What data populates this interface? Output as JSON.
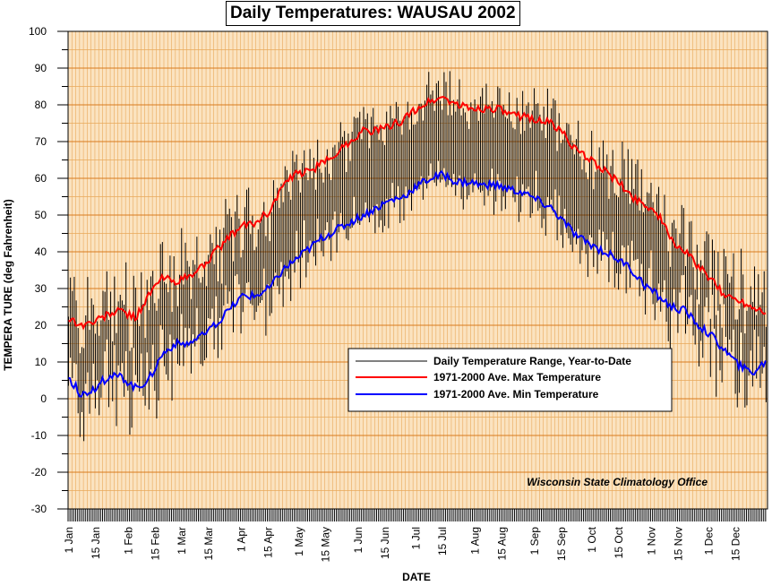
{
  "chart_data": {
    "type": "line",
    "title": "Daily Temperatures: WAUSAU 2002",
    "xlabel": "DATE",
    "ylabel": "TEMPERA TURE (deg Fahrenheit)",
    "ylim": [
      -30,
      100
    ],
    "y_ticks": [
      -30,
      -20,
      -10,
      0,
      10,
      20,
      30,
      40,
      50,
      60,
      70,
      80,
      90,
      100
    ],
    "x_tick_labels": [
      {
        "day": 1,
        "label": "1 Jan"
      },
      {
        "day": 15,
        "label": "15 Jan"
      },
      {
        "day": 32,
        "label": "1 Feb"
      },
      {
        "day": 46,
        "label": "15 Feb"
      },
      {
        "day": 60,
        "label": "1 Mar"
      },
      {
        "day": 74,
        "label": "15 Mar"
      },
      {
        "day": 91,
        "label": "1 Apr"
      },
      {
        "day": 105,
        "label": "15 Apr"
      },
      {
        "day": 121,
        "label": "1 May"
      },
      {
        "day": 135,
        "label": "15 May"
      },
      {
        "day": 152,
        "label": "1 Jun"
      },
      {
        "day": 166,
        "label": "15 Jun"
      },
      {
        "day": 182,
        "label": "1 Jul"
      },
      {
        "day": 196,
        "label": "15 Jul"
      },
      {
        "day": 213,
        "label": "1 Aug"
      },
      {
        "day": 227,
        "label": "15 Aug"
      },
      {
        "day": 244,
        "label": "1 Sep"
      },
      {
        "day": 258,
        "label": "15 Sep"
      },
      {
        "day": 274,
        "label": "1 Oct"
      },
      {
        "day": 288,
        "label": "15 Oct"
      },
      {
        "day": 305,
        "label": "1 Nov"
      },
      {
        "day": 319,
        "label": "15 Nov"
      },
      {
        "day": 335,
        "label": "1 Dec"
      },
      {
        "day": 349,
        "label": "15 Dec"
      }
    ],
    "grid": true,
    "legend_position": "lower-right",
    "legend": [
      {
        "name": "Daily Temperature Range, Year-to-Date",
        "color": "#000000"
      },
      {
        "name": "1971-2000 Ave. Max Temperature",
        "color": "#ff0000"
      },
      {
        "name": "1971-2000 Ave. Min Temperature",
        "color": "#0000ff"
      }
    ],
    "series": [
      {
        "name": "1971-2000 Ave. Max Temperature",
        "color": "#ff0000",
        "x": [
          1,
          8,
          15,
          22,
          29,
          36,
          43,
          50,
          57,
          64,
          71,
          78,
          85,
          92,
          99,
          106,
          113,
          120,
          127,
          134,
          141,
          148,
          155,
          162,
          169,
          176,
          183,
          190,
          197,
          204,
          211,
          218,
          225,
          232,
          239,
          246,
          253,
          260,
          267,
          274,
          281,
          288,
          295,
          302,
          309,
          316,
          323,
          330,
          337,
          344,
          351,
          358,
          365
        ],
        "values": [
          22,
          20,
          21,
          23,
          24,
          22,
          28,
          33,
          32,
          33,
          36,
          40,
          44,
          47,
          48,
          51,
          58,
          61,
          62,
          64,
          67,
          70,
          73,
          73,
          74,
          76,
          79,
          81,
          82,
          80,
          79,
          79,
          79,
          77,
          77,
          76,
          75,
          72,
          67,
          65,
          62,
          59,
          55,
          53,
          50,
          43,
          40,
          36,
          32,
          28,
          27,
          25,
          24
        ]
      },
      {
        "name": "1971-2000 Ave. Min Temperature",
        "color": "#0000ff",
        "x": [
          1,
          8,
          15,
          22,
          29,
          36,
          43,
          50,
          57,
          64,
          71,
          78,
          85,
          92,
          99,
          106,
          113,
          120,
          127,
          134,
          141,
          148,
          155,
          162,
          169,
          176,
          183,
          190,
          197,
          204,
          211,
          218,
          225,
          232,
          239,
          246,
          253,
          260,
          267,
          274,
          281,
          288,
          295,
          302,
          309,
          316,
          323,
          330,
          337,
          344,
          351,
          358,
          365
        ],
        "values": [
          6,
          1,
          3,
          6,
          6,
          3,
          5,
          12,
          15,
          15,
          17,
          20,
          24,
          28,
          28,
          30,
          35,
          38,
          41,
          44,
          46,
          48,
          50,
          52,
          54,
          55,
          58,
          60,
          61,
          59,
          59,
          58,
          58,
          57,
          56,
          54,
          52,
          48,
          44,
          42,
          40,
          38,
          35,
          31,
          28,
          25,
          24,
          20,
          17,
          13,
          9,
          7,
          10
        ]
      }
    ]
  },
  "credit": "Wisconsin State Climatology Office",
  "colors": {
    "plot_background": "#fbe3c0",
    "grid_minor": "#e8a85a",
    "grid_major": "#d97b1e",
    "max_line": "#ff0000",
    "min_line": "#0000ff",
    "range_bars": "#000000"
  }
}
